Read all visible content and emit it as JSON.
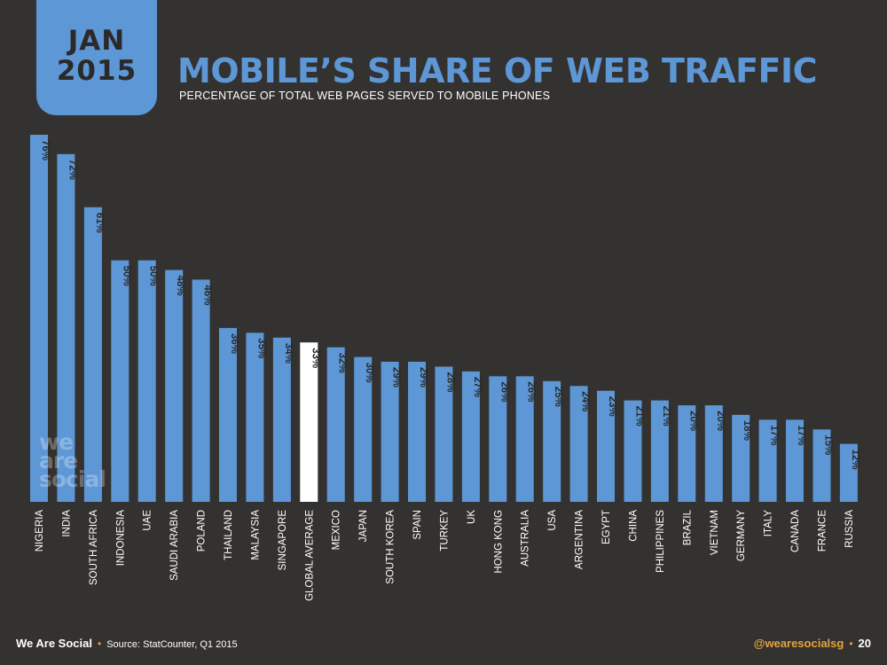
{
  "header": {
    "date_month": "JAN",
    "date_year": "2015",
    "title": "MOBILE’S SHARE OF WEB TRAFFIC",
    "subtitle": "PERCENTAGE OF TOTAL WEB PAGES SERVED TO MOBILE PHONES"
  },
  "watermark": {
    "line1": "we",
    "line2": "are",
    "line3": "social"
  },
  "footer": {
    "brand": "We Are Social",
    "separator": "•",
    "source": "Source: StatCounter, Q1 2015",
    "handle": "@wearesocialsg",
    "page_number": "20"
  },
  "colors": {
    "background": "#343230",
    "bar": "#5d97d6",
    "highlight_bar": "#ffffff",
    "accent": "#e6a23c",
    "bar_label": "#2b2a28"
  },
  "chart_data": {
    "type": "bar",
    "orientation": "vertical",
    "categories": [
      "NIGERIA",
      "INDIA",
      "SOUTH AFRICA",
      "INDONESIA",
      "UAE",
      "SAUDI ARABIA",
      "POLAND",
      "THAILAND",
      "MALAYSIA",
      "SINGAPORE",
      "GLOBAL AVERAGE",
      "MEXICO",
      "JAPAN",
      "SOUTH KOREA",
      "SPAIN",
      "TURKEY",
      "UK",
      "HONG KONG",
      "AUSTRALIA",
      "USA",
      "ARGENTINA",
      "EGYPT",
      "CHINA",
      "PHILIPPINES",
      "BRAZIL",
      "VIETNAM",
      "GERMANY",
      "ITALY",
      "CANADA",
      "FRANCE",
      "RUSSIA"
    ],
    "values": [
      76,
      72,
      61,
      50,
      50,
      48,
      46,
      36,
      35,
      34,
      33,
      32,
      30,
      29,
      29,
      28,
      27,
      26,
      26,
      25,
      24,
      23,
      21,
      21,
      20,
      20,
      18,
      17,
      17,
      15,
      12
    ],
    "labels": [
      "76%",
      "72%",
      "61%",
      "50%",
      "50%",
      "48%",
      "46%",
      "36%",
      "35%",
      "34%",
      "33%",
      "32%",
      "30%",
      "29%",
      "29%",
      "28%",
      "27%",
      "26%",
      "26%",
      "25%",
      "24%",
      "23%",
      "21%",
      "21%",
      "20%",
      "20%",
      "18%",
      "17%",
      "17%",
      "15%",
      "12%"
    ],
    "highlight_category": "GLOBAL AVERAGE",
    "unit": "%",
    "title": "MOBILE’S SHARE OF WEB TRAFFIC",
    "xlabel": "",
    "ylabel": "",
    "ylim": [
      0,
      76
    ],
    "grid": false,
    "legend": "none"
  }
}
